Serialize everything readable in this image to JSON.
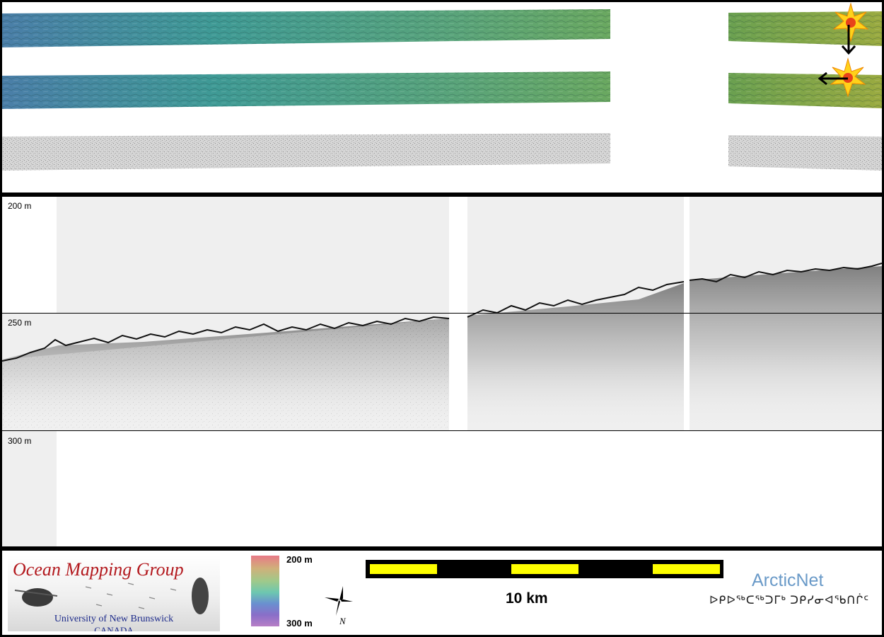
{
  "profile": {
    "depth_labels": [
      "200 m",
      "250 m",
      "300 m"
    ]
  },
  "legend": {
    "logo": {
      "title": "Ocean Mapping Group",
      "university": "University of New Brunswick",
      "country": "CANADA"
    },
    "colorbar": {
      "top_label": "200 m",
      "bottom_label": "300 m",
      "colors": [
        "#e87a87",
        "#9fc98a",
        "#6a8fd0",
        "#b77ec6"
      ]
    },
    "north_arrow": {
      "label": "N"
    },
    "scale": {
      "label": "10 km"
    },
    "partner": {
      "name": "ArcticNet",
      "syllabics": "ᐅᑭᐅᖅᑕᖅᑐᒥᒃ ᑐᑭᓯᓂᐊᖃᑎᒌᑦ"
    }
  }
}
